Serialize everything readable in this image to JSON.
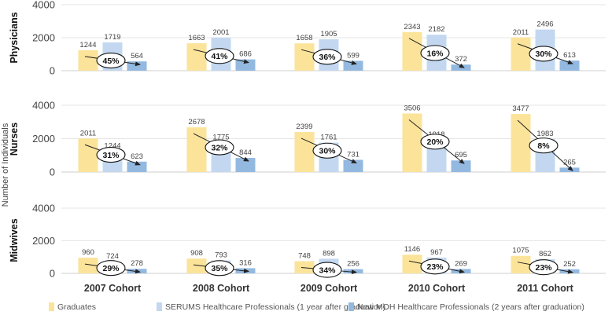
{
  "chart_data": {
    "type": "bar",
    "ylabel": "Number of Individuals",
    "ylim": [
      0,
      4000
    ],
    "yticks": [
      0,
      2000,
      4000
    ],
    "categories": [
      "2007 Cohort",
      "2008 Cohort",
      "2009 Cohort",
      "2010 Cohort",
      "2011 Cohort"
    ],
    "legend": [
      {
        "name": "Graduates",
        "color": "#fbe39a"
      },
      {
        "name": "SERUMS Healthcare Professionals (1 year after graduation)",
        "color": "#c3d8f0"
      },
      {
        "name": "New MOH Healthcare Professionals (2 years after graduation)",
        "color": "#93b9e0"
      }
    ],
    "panels": [
      {
        "name": "Physicians",
        "graduates": [
          1244,
          1663,
          1658,
          2343,
          2011
        ],
        "serums": [
          1719,
          2001,
          1905,
          2182,
          2496
        ],
        "moh": [
          564,
          686,
          599,
          372,
          613
        ],
        "percent": [
          "45%",
          "41%",
          "36%",
          "16%",
          "30%"
        ]
      },
      {
        "name": "Nurses",
        "graduates": [
          2011,
          2678,
          2399,
          3506,
          3477
        ],
        "serums": [
          1244,
          1775,
          1761,
          1918,
          1983
        ],
        "moh": [
          623,
          844,
          731,
          695,
          265
        ],
        "percent": [
          "31%",
          "32%",
          "30%",
          "20%",
          "8%"
        ]
      },
      {
        "name": "Midwives",
        "graduates": [
          960,
          908,
          748,
          1146,
          1075
        ],
        "serums": [
          724,
          793,
          898,
          967,
          862
        ],
        "moh": [
          278,
          316,
          256,
          269,
          252
        ],
        "percent": [
          "29%",
          "35%",
          "34%",
          "23%",
          "23%"
        ]
      }
    ]
  }
}
